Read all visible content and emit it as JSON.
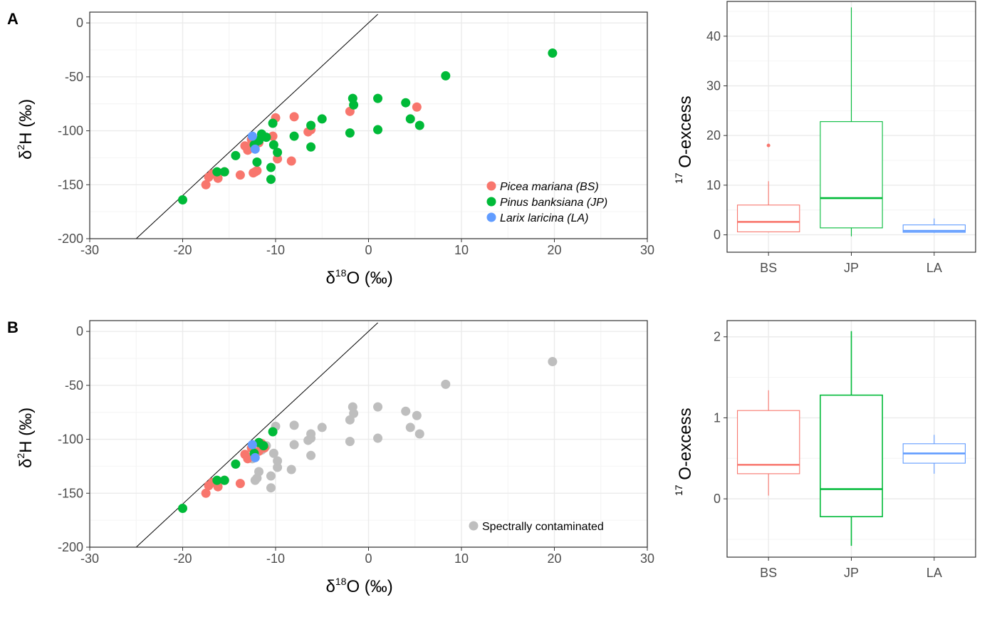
{
  "figure": {
    "panel_tags": [
      "A",
      "B"
    ]
  },
  "colors": {
    "BS": "#F8766D",
    "JP": "#00BA38",
    "LA": "#619CFF",
    "contaminated": "#BEBEBE",
    "grid_major": "#EBEBEB",
    "grid_minor": "#F4F4F4"
  },
  "chart_data": [
    {
      "id": "A-scatter",
      "type": "scatter",
      "panel": "A",
      "xlabel": {
        "main": "δ",
        "sup": "18",
        "post": "O (‰)"
      },
      "ylabel": {
        "main": "δ",
        "sup": "2",
        "post": "H (‰)"
      },
      "xlim": [
        -30,
        30
      ],
      "ylim": [
        -200,
        10
      ],
      "xticks": [
        -30,
        -20,
        -10,
        0,
        10,
        20,
        30
      ],
      "yticks": [
        0,
        -50,
        -100,
        -150,
        -200
      ],
      "reference_line": [
        [
          -25,
          -200
        ],
        [
          1,
          8
        ]
      ],
      "legend": {
        "position": "bottom-right",
        "entries": [
          {
            "key": "BS",
            "label": "Picea mariana (BS)",
            "italic": true
          },
          {
            "key": "JP",
            "label": "Pinus banksiana (JP)",
            "italic": true
          },
          {
            "key": "LA",
            "label": "Larix laricina (LA)",
            "italic": true
          }
        ]
      },
      "series": [
        {
          "key": "BS",
          "points": [
            [
              -17.5,
              -150
            ],
            [
              -17.2,
              -143
            ],
            [
              -16.8,
              -140
            ],
            [
              -16.2,
              -144
            ],
            [
              -15.5,
              -138
            ],
            [
              -13.8,
              -141
            ],
            [
              -13.3,
              -114
            ],
            [
              -13.0,
              -118
            ],
            [
              -12.8,
              -116
            ],
            [
              -12.6,
              -108
            ],
            [
              -12.4,
              -139
            ],
            [
              -12.2,
              -138
            ],
            [
              -12.0,
              -137
            ],
            [
              -11.8,
              -111
            ],
            [
              -11.5,
              -104
            ],
            [
              -10.3,
              -105
            ],
            [
              -10.0,
              -88
            ],
            [
              -9.8,
              -126
            ],
            [
              -8.3,
              -128
            ],
            [
              -8.0,
              -87
            ],
            [
              -6.5,
              -101
            ],
            [
              -6.2,
              -99
            ],
            [
              -2.0,
              -82
            ],
            [
              5.2,
              -78
            ]
          ]
        },
        {
          "key": "JP",
          "points": [
            [
              -20,
              -164
            ],
            [
              -16.3,
              -138
            ],
            [
              -15.5,
              -138
            ],
            [
              -14.3,
              -123
            ],
            [
              -12.3,
              -113
            ],
            [
              -12.0,
              -129
            ],
            [
              -11.8,
              -109
            ],
            [
              -11.5,
              -103
            ],
            [
              -11.0,
              -106
            ],
            [
              -10.5,
              -134
            ],
            [
              -10.5,
              -145
            ],
            [
              -10.3,
              -93
            ],
            [
              -10.2,
              -113
            ],
            [
              -9.8,
              -120
            ],
            [
              -8.0,
              -105
            ],
            [
              -6.2,
              -95
            ],
            [
              -6.2,
              -115
            ],
            [
              -5.0,
              -89
            ],
            [
              -2.0,
              -102
            ],
            [
              -1.7,
              -70
            ],
            [
              -1.6,
              -76
            ],
            [
              1.0,
              -70
            ],
            [
              1.0,
              -99
            ],
            [
              4.0,
              -74
            ],
            [
              4.5,
              -89
            ],
            [
              5.5,
              -95
            ],
            [
              8.3,
              -49
            ],
            [
              19.8,
              -28
            ]
          ]
        },
        {
          "key": "LA",
          "points": [
            [
              -12.5,
              -105
            ],
            [
              -12.2,
              -117
            ]
          ]
        }
      ]
    },
    {
      "id": "A-box",
      "type": "box",
      "panel": "A",
      "categories": [
        "BS",
        "JP",
        "LA"
      ],
      "ylabel": {
        "sup": "17",
        "post": " O-excess"
      },
      "ylim": [
        -3.5,
        47
      ],
      "yticks": [
        0,
        10,
        20,
        30,
        40
      ],
      "boxes": [
        {
          "key": "BS",
          "min": 0.5,
          "q1": 0.6,
          "median": 2.6,
          "q3": 6.0,
          "max": 10.8,
          "outliers": [
            18.0
          ]
        },
        {
          "key": "JP",
          "min": -0.3,
          "q1": 1.4,
          "median": 7.4,
          "q3": 22.8,
          "max": 45.8,
          "outliers": []
        },
        {
          "key": "LA",
          "min": 0.4,
          "q1": 0.5,
          "median": 0.8,
          "q3": 2.0,
          "max": 3.3,
          "outliers": []
        }
      ]
    },
    {
      "id": "B-scatter",
      "type": "scatter",
      "panel": "B",
      "xlabel": {
        "main": "δ",
        "sup": "18",
        "post": "O (‰)"
      },
      "ylabel": {
        "main": "δ",
        "sup": "2",
        "post": "H (‰)"
      },
      "xlim": [
        -30,
        30
      ],
      "ylim": [
        -200,
        10
      ],
      "xticks": [
        -30,
        -20,
        -10,
        0,
        10,
        20,
        30
      ],
      "yticks": [
        0,
        -50,
        -100,
        -150,
        -200
      ],
      "reference_line": [
        [
          -25,
          -200
        ],
        [
          1,
          8
        ]
      ],
      "legend": {
        "position": "bottom-right",
        "entries": [
          {
            "key": "contaminated",
            "label": "Spectrally contaminated",
            "italic": false
          }
        ]
      },
      "series": [
        {
          "key": "contaminated",
          "points": [
            [
              -12.5,
              -118
            ],
            [
              -12.2,
              -138
            ],
            [
              -12.0,
              -136
            ],
            [
              -11.8,
              -130
            ],
            [
              -11.5,
              -110
            ],
            [
              -11.0,
              -106
            ],
            [
              -10.5,
              -134
            ],
            [
              -10.5,
              -145
            ],
            [
              -10.2,
              -113
            ],
            [
              -10.0,
              -88
            ],
            [
              -9.8,
              -120
            ],
            [
              -9.8,
              -126
            ],
            [
              -8.3,
              -128
            ],
            [
              -8.0,
              -87
            ],
            [
              -8.0,
              -105
            ],
            [
              -6.5,
              -101
            ],
            [
              -6.2,
              -95
            ],
            [
              -6.2,
              -99
            ],
            [
              -6.2,
              -115
            ],
            [
              -5.0,
              -89
            ],
            [
              -2.0,
              -82
            ],
            [
              -2.0,
              -102
            ],
            [
              -1.7,
              -70
            ],
            [
              -1.6,
              -76
            ],
            [
              1.0,
              -70
            ],
            [
              1.0,
              -99
            ],
            [
              4.0,
              -74
            ],
            [
              4.5,
              -89
            ],
            [
              5.2,
              -78
            ],
            [
              5.5,
              -95
            ],
            [
              8.3,
              -49
            ],
            [
              19.8,
              -28
            ]
          ]
        },
        {
          "key": "BS",
          "points": [
            [
              -17.5,
              -150
            ],
            [
              -17.2,
              -143
            ],
            [
              -16.8,
              -140
            ],
            [
              -16.2,
              -144
            ],
            [
              -15.5,
              -138
            ],
            [
              -13.8,
              -141
            ],
            [
              -13.3,
              -114
            ],
            [
              -13.0,
              -118
            ],
            [
              -12.6,
              -108
            ],
            [
              -11.8,
              -111
            ],
            [
              -11.5,
              -104
            ],
            [
              -11.2,
              -108
            ]
          ]
        },
        {
          "key": "JP",
          "points": [
            [
              -20,
              -164
            ],
            [
              -16.3,
              -138
            ],
            [
              -15.5,
              -138
            ],
            [
              -14.3,
              -123
            ],
            [
              -12.3,
              -113
            ],
            [
              -11.8,
              -103
            ],
            [
              -11.3,
              -106
            ],
            [
              -10.3,
              -93
            ]
          ]
        },
        {
          "key": "LA",
          "points": [
            [
              -12.5,
              -105
            ],
            [
              -12.2,
              -117
            ]
          ]
        }
      ]
    },
    {
      "id": "B-box",
      "type": "box",
      "panel": "B",
      "categories": [
        "BS",
        "JP",
        "LA"
      ],
      "ylabel": {
        "sup": "17",
        "post": " O-excess"
      },
      "ylim": [
        -0.72,
        2.2
      ],
      "yticks": [
        0,
        1,
        2
      ],
      "boxes": [
        {
          "key": "BS",
          "min": 0.04,
          "q1": 0.31,
          "median": 0.42,
          "q3": 1.09,
          "max": 1.34,
          "outliers": []
        },
        {
          "key": "JP",
          "min": -0.58,
          "q1": -0.22,
          "median": 0.12,
          "q3": 1.28,
          "max": 2.07,
          "outliers": []
        },
        {
          "key": "LA",
          "min": 0.31,
          "q1": 0.44,
          "median": 0.56,
          "q3": 0.68,
          "max": 0.79,
          "outliers": []
        }
      ]
    }
  ]
}
